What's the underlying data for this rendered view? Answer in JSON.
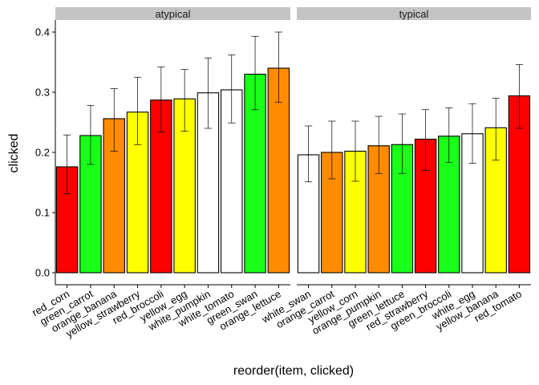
{
  "chart_data": {
    "type": "bar",
    "xlabel": "reorder(item, clicked)",
    "ylabel": "clicked",
    "ylim": [
      -0.02,
      0.42
    ],
    "yticks": [
      0.0,
      0.1,
      0.2,
      0.3,
      0.4
    ],
    "ytick_labels": [
      "0.0",
      "0.1",
      "0.2",
      "0.3",
      "0.4"
    ],
    "error_bars": true,
    "grid": false,
    "legend": "none",
    "colors": {
      "red": "#FF0000",
      "green": "#1AFF1A",
      "orange": "#FF8C00",
      "yellow": "#FFFF00",
      "white": "#FFFFFF",
      "strip": "#C4C4C4",
      "axis": "#000000"
    },
    "panels": [
      {
        "name": "atypical",
        "bars": [
          {
            "category": "red_corn",
            "value": 0.176,
            "lower": 0.131,
            "upper": 0.229,
            "color": "red"
          },
          {
            "category": "green_carrot",
            "value": 0.228,
            "lower": 0.18,
            "upper": 0.278,
            "color": "green"
          },
          {
            "category": "orange_banana",
            "value": 0.256,
            "lower": 0.202,
            "upper": 0.306,
            "color": "orange"
          },
          {
            "category": "yellow_strawberry",
            "value": 0.267,
            "lower": 0.213,
            "upper": 0.325,
            "color": "yellow"
          },
          {
            "category": "red_broccoli",
            "value": 0.287,
            "lower": 0.234,
            "upper": 0.342,
            "color": "red"
          },
          {
            "category": "yellow_egg",
            "value": 0.289,
            "lower": 0.235,
            "upper": 0.338,
            "color": "yellow"
          },
          {
            "category": "white_pumpkin",
            "value": 0.299,
            "lower": 0.24,
            "upper": 0.357,
            "color": "white"
          },
          {
            "category": "white_tomato",
            "value": 0.304,
            "lower": 0.249,
            "upper": 0.362,
            "color": "white"
          },
          {
            "category": "green_swan",
            "value": 0.33,
            "lower": 0.271,
            "upper": 0.393,
            "color": "green"
          },
          {
            "category": "orange_lettuce",
            "value": 0.34,
            "lower": 0.283,
            "upper": 0.4,
            "color": "orange"
          }
        ]
      },
      {
        "name": "typical",
        "bars": [
          {
            "category": "white_swan",
            "value": 0.196,
            "lower": 0.151,
            "upper": 0.244,
            "color": "white"
          },
          {
            "category": "orange_carrot",
            "value": 0.2,
            "lower": 0.156,
            "upper": 0.252,
            "color": "orange"
          },
          {
            "category": "yellow_corn",
            "value": 0.202,
            "lower": 0.152,
            "upper": 0.252,
            "color": "yellow"
          },
          {
            "category": "orange_pumpkin",
            "value": 0.211,
            "lower": 0.165,
            "upper": 0.26,
            "color": "orange"
          },
          {
            "category": "green_lettuce",
            "value": 0.213,
            "lower": 0.165,
            "upper": 0.264,
            "color": "green"
          },
          {
            "category": "red_strawberry",
            "value": 0.222,
            "lower": 0.17,
            "upper": 0.271,
            "color": "red"
          },
          {
            "category": "green_broccoli",
            "value": 0.227,
            "lower": 0.183,
            "upper": 0.274,
            "color": "green"
          },
          {
            "category": "white_egg",
            "value": 0.231,
            "lower": 0.182,
            "upper": 0.281,
            "color": "white"
          },
          {
            "category": "yellow_banana",
            "value": 0.241,
            "lower": 0.187,
            "upper": 0.29,
            "color": "yellow"
          },
          {
            "category": "red_tomato",
            "value": 0.294,
            "lower": 0.24,
            "upper": 0.346,
            "color": "red"
          }
        ]
      }
    ]
  }
}
